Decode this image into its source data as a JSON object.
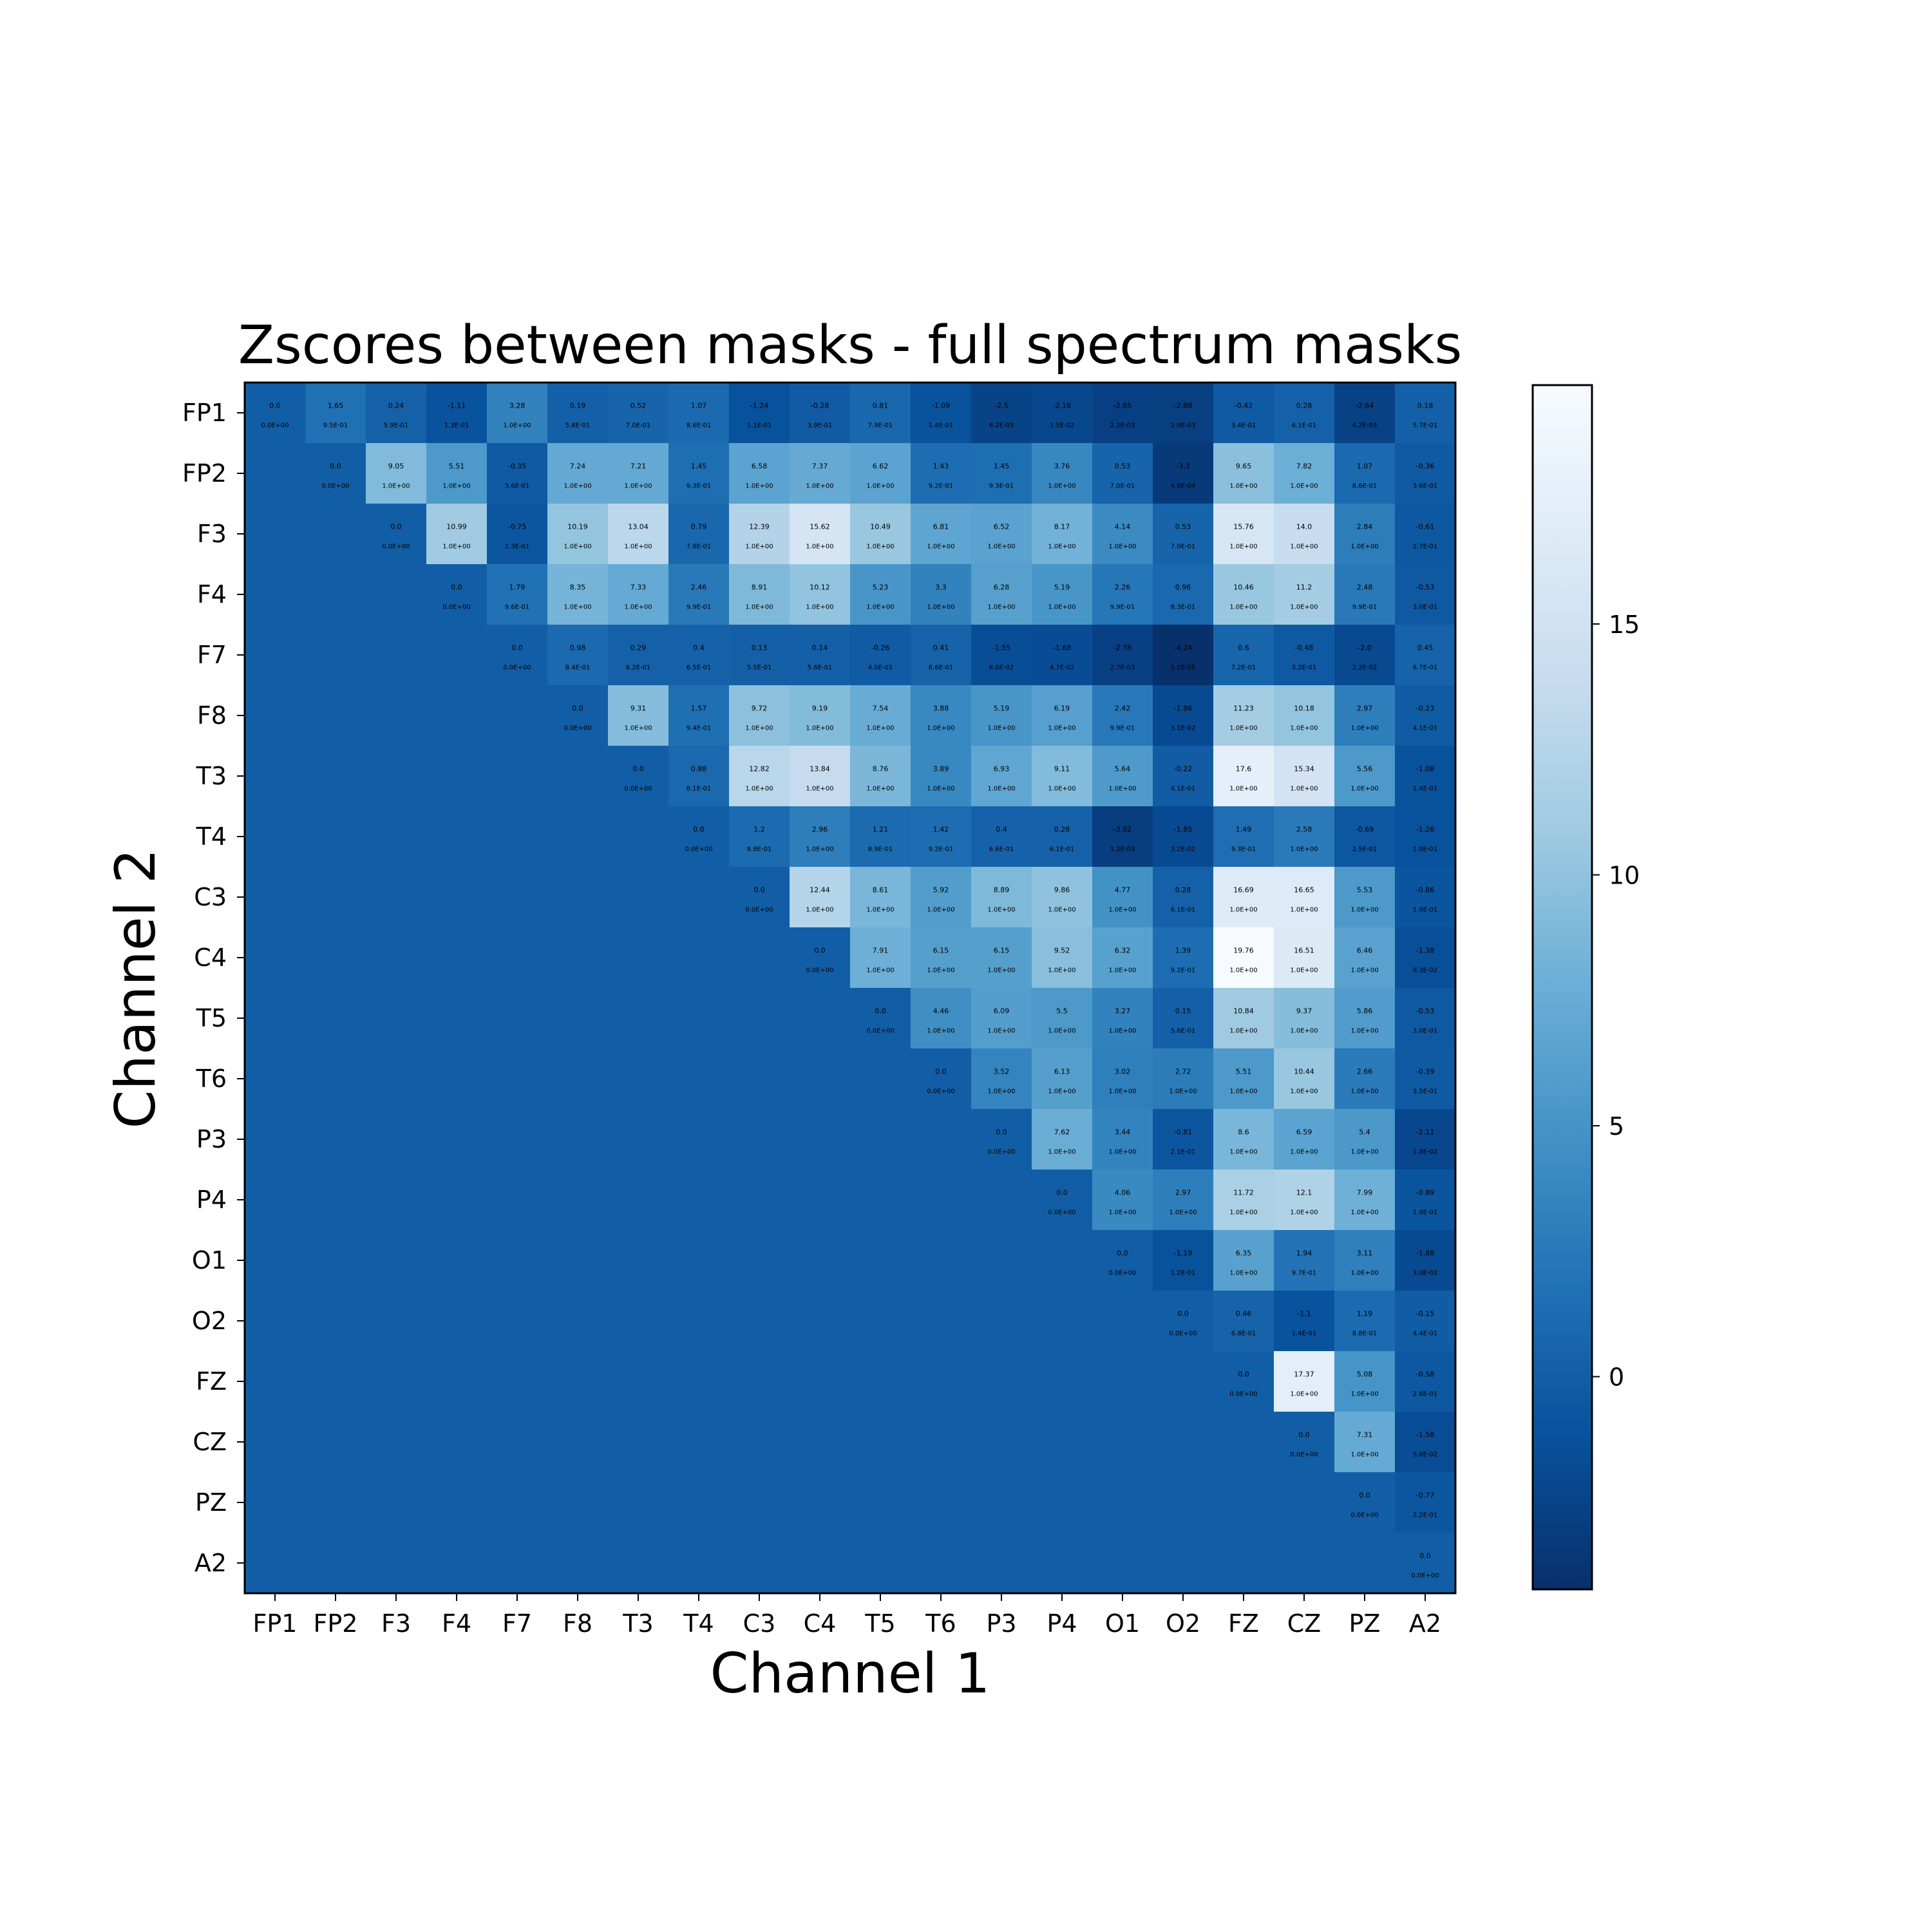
{
  "chart_data": {
    "type": "heatmap",
    "title": "Zscores between masks - full spectrum masks",
    "xlabel": "Channel 1",
    "ylabel": "Channel 2",
    "channels": [
      "FP1",
      "FP2",
      "F3",
      "F4",
      "F7",
      "F8",
      "T3",
      "T4",
      "C3",
      "C4",
      "T5",
      "T6",
      "P3",
      "P4",
      "O1",
      "O2",
      "FZ",
      "CZ",
      "PZ",
      "A2"
    ],
    "colormap": "Blues_r",
    "vmin": -4.24,
    "vmax": 19.76,
    "colorbar_ticks": [
      0,
      5,
      10,
      15
    ],
    "fill_value_lower_triangle": 0,
    "zscores": [
      [
        "0.0",
        "1.65",
        "0.24",
        "-1.11",
        "3.28",
        "0.19",
        "0.52",
        "1.07",
        "-1.24",
        "-0.28",
        "0.81",
        "-1.09",
        "-2.5",
        "-2.16",
        "-2.85",
        "-2.88",
        "-0.42",
        "0.28",
        "-2.64",
        "0.18"
      ],
      [
        "0.0",
        "9.05",
        "5.51",
        "-0.35",
        "7.24",
        "7.21",
        "1.45",
        "6.58",
        "7.37",
        "6.62",
        "1.43",
        "1.45",
        "3.76",
        "0.53",
        "-3.3",
        "9.65",
        "7.82",
        "1.07",
        "-0.36"
      ],
      [
        "0.0",
        "10.99",
        "-0.75",
        "10.19",
        "13.04",
        "0.79",
        "12.39",
        "15.62",
        "10.49",
        "6.81",
        "6.52",
        "8.17",
        "4.14",
        "0.53",
        "15.76",
        "14.0",
        "2.84",
        "-0.61"
      ],
      [
        "0.0",
        "1.79",
        "8.35",
        "7.33",
        "2.46",
        "8.91",
        "10.12",
        "5.23",
        "3.3",
        "6.28",
        "5.19",
        "2.26",
        "0.96",
        "10.46",
        "11.2",
        "2.48",
        "-0.53"
      ],
      [
        "0.0",
        "0.98",
        "0.29",
        "0.4",
        "0.13",
        "0.14",
        "-0.26",
        "0.41",
        "-1.55",
        "-1.68",
        "-2.78",
        "-4.24",
        "0.6",
        "-0.48",
        "-2.0",
        "0.45"
      ],
      [
        "0.0",
        "9.31",
        "1.57",
        "9.72",
        "9.19",
        "7.54",
        "3.88",
        "5.19",
        "6.19",
        "2.42",
        "-1.86",
        "11.23",
        "10.18",
        "2.97",
        "-0.23"
      ],
      [
        "0.0",
        "0.88",
        "12.82",
        "13.84",
        "8.76",
        "3.89",
        "6.93",
        "9.11",
        "5.64",
        "-0.22",
        "17.6",
        "15.34",
        "5.56",
        "-1.08"
      ],
      [
        "0.0",
        "1.2",
        "2.96",
        "1.21",
        "1.42",
        "0.4",
        "0.28",
        "-3.02",
        "-1.85",
        "1.49",
        "2.58",
        "-0.69",
        "-1.26"
      ],
      [
        "0.0",
        "12.44",
        "8.61",
        "5.92",
        "8.89",
        "9.86",
        "4.77",
        "0.28",
        "16.69",
        "16.65",
        "5.53",
        "-0.86"
      ],
      [
        "0.0",
        "7.91",
        "6.15",
        "6.15",
        "9.52",
        "6.32",
        "1.39",
        "19.76",
        "16.51",
        "6.46",
        "-1.38"
      ],
      [
        "0.0",
        "4.46",
        "6.09",
        "5.5",
        "3.27",
        "0.15",
        "10.84",
        "9.37",
        "5.86",
        "-0.53"
      ],
      [
        "0.0",
        "3.52",
        "6.13",
        "3.02",
        "2.72",
        "5.51",
        "10.44",
        "2.66",
        "-0.39"
      ],
      [
        "0.0",
        "7.62",
        "3.44",
        "-0.81",
        "8.6",
        "6.59",
        "5.4",
        "-2.11"
      ],
      [
        "0.0",
        "4.06",
        "2.97",
        "11.72",
        "12.1",
        "7.99",
        "-0.89"
      ],
      [
        "0.0",
        "-1.19",
        "6.35",
        "1.94",
        "3.11",
        "-1.88"
      ],
      [
        "0.0",
        "0.46",
        "-1.1",
        "1.19",
        "-0.15"
      ],
      [
        "0.0",
        "17.37",
        "5.08",
        "-0.58"
      ],
      [
        "0.0",
        "7.31",
        "-1.58"
      ],
      [
        "0.0",
        "-0.77"
      ],
      [
        "0.0"
      ]
    ],
    "probabilities": [
      [
        "0.0E+00",
        "9.5E-01",
        "5.9E-01",
        "1.3E-01",
        "1.0E+00",
        "5.8E-01",
        "7.0E-01",
        "8.6E-01",
        "1.1E-01",
        "3.9E-01",
        "7.9E-01",
        "1.4E-01",
        "6.2E-03",
        "1.5E-02",
        "2.2E-03",
        "2.0E-03",
        "3.4E-01",
        "6.1E-01",
        "4.2E-03",
        "5.7E-01"
      ],
      [
        "0.0E+00",
        "1.0E+00",
        "1.0E+00",
        "3.6E-01",
        "1.0E+00",
        "1.0E+00",
        "9.3E-01",
        "1.0E+00",
        "1.0E+00",
        "1.0E+00",
        "9.2E-01",
        "9.3E-01",
        "1.0E+00",
        "7.0E-01",
        "4.8E-04",
        "1.0E+00",
        "1.0E+00",
        "8.6E-01",
        "3.6E-01"
      ],
      [
        "0.0E+00",
        "1.0E+00",
        "2.3E-01",
        "1.0E+00",
        "1.0E+00",
        "7.8E-01",
        "1.0E+00",
        "1.0E+00",
        "1.0E+00",
        "1.0E+00",
        "1.0E+00",
        "1.0E+00",
        "1.0E+00",
        "7.0E-01",
        "1.0E+00",
        "1.0E+00",
        "1.0E+00",
        "2.7E-01"
      ],
      [
        "0.0E+00",
        "9.6E-01",
        "1.0E+00",
        "1.0E+00",
        "9.9E-01",
        "1.0E+00",
        "1.0E+00",
        "1.0E+00",
        "1.0E+00",
        "1.0E+00",
        "1.0E+00",
        "9.9E-01",
        "8.3E-01",
        "1.0E+00",
        "1.0E+00",
        "9.9E-01",
        "3.0E-01"
      ],
      [
        "0.0E+00",
        "8.4E-01",
        "6.2E-01",
        "6.5E-01",
        "5.5E-01",
        "5.6E-01",
        "4.0E-01",
        "6.6E-01",
        "6.0E-02",
        "4.7E-02",
        "2.7E-03",
        "1.1E-05",
        "7.2E-01",
        "3.2E-01",
        "2.2E-02",
        "6.7E-01"
      ],
      [
        "0.0E+00",
        "1.0E+00",
        "9.4E-01",
        "1.0E+00",
        "1.0E+00",
        "1.0E+00",
        "1.0E+00",
        "1.0E+00",
        "1.0E+00",
        "9.9E-01",
        "3.1E-02",
        "1.0E+00",
        "1.0E+00",
        "1.0E+00",
        "4.1E-01"
      ],
      [
        "0.0E+00",
        "8.1E-01",
        "1.0E+00",
        "1.0E+00",
        "1.0E+00",
        "1.0E+00",
        "1.0E+00",
        "1.0E+00",
        "1.0E+00",
        "4.1E-01",
        "1.0E+00",
        "1.0E+00",
        "1.0E+00",
        "1.4E-01"
      ],
      [
        "0.0E+00",
        "8.8E-01",
        "1.0E+00",
        "8.9E-01",
        "9.2E-01",
        "6.6E-01",
        "6.1E-01",
        "1.2E-03",
        "3.2E-02",
        "9.3E-01",
        "1.0E+00",
        "2.5E-01",
        "1.0E-01"
      ],
      [
        "0.0E+00",
        "1.0E+00",
        "1.0E+00",
        "1.0E+00",
        "1.0E+00",
        "1.0E+00",
        "1.0E+00",
        "6.1E-01",
        "1.0E+00",
        "1.0E+00",
        "1.0E+00",
        "1.9E-01"
      ],
      [
        "0.0E+00",
        "1.0E+00",
        "1.0E+00",
        "1.0E+00",
        "1.0E+00",
        "1.0E+00",
        "9.2E-01",
        "1.0E+00",
        "1.0E+00",
        "1.0E+00",
        "8.3E-02"
      ],
      [
        "0.0E+00",
        "1.0E+00",
        "1.0E+00",
        "1.0E+00",
        "1.0E+00",
        "5.6E-01",
        "1.0E+00",
        "1.0E+00",
        "1.0E+00",
        "3.0E-01"
      ],
      [
        "0.0E+00",
        "1.0E+00",
        "1.0E+00",
        "1.0E+00",
        "1.0E+00",
        "1.0E+00",
        "1.0E+00",
        "1.0E+00",
        "3.5E-01"
      ],
      [
        "0.0E+00",
        "1.0E+00",
        "1.0E+00",
        "2.1E-01",
        "1.0E+00",
        "1.0E+00",
        "1.0E+00",
        "1.8E-02"
      ],
      [
        "0.0E+00",
        "1.0E+00",
        "1.0E+00",
        "1.0E+00",
        "1.0E+00",
        "1.0E+00",
        "1.9E-01"
      ],
      [
        "0.0E+00",
        "1.2E-01",
        "1.0E+00",
        "9.7E-01",
        "1.0E+00",
        "3.0E-02"
      ],
      [
        "0.0E+00",
        "6.8E-01",
        "1.4E-01",
        "8.8E-01",
        "4.4E-01"
      ],
      [
        "0.0E+00",
        "1.0E+00",
        "1.0E+00",
        "2.8E-01"
      ],
      [
        "0.0E+00",
        "1.0E+00",
        "5.8E-02"
      ],
      [
        "0.0E+00",
        "2.2E-01"
      ],
      [
        "0.0E+00"
      ]
    ]
  }
}
